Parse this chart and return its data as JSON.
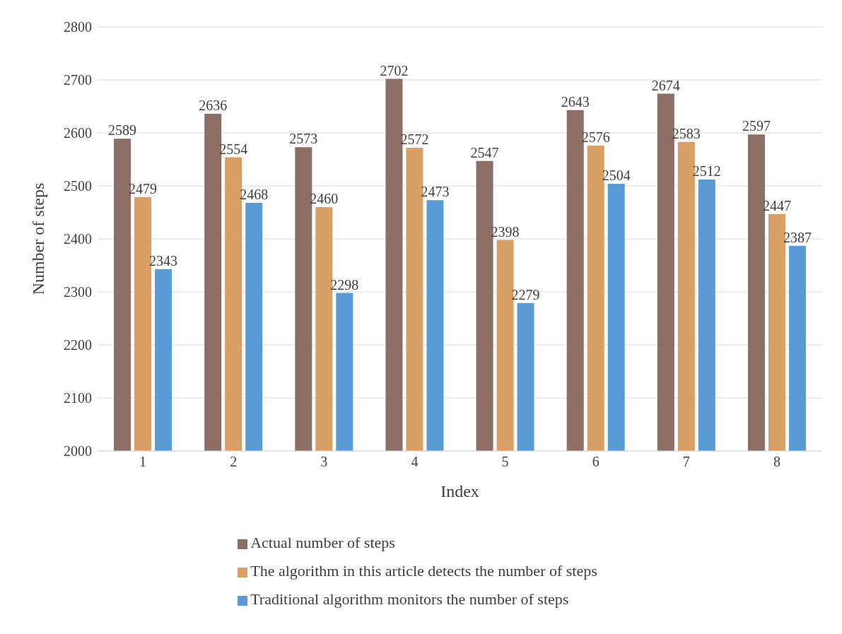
{
  "chart_data": {
    "type": "bar",
    "xlabel": "Index",
    "ylabel": "Number of steps",
    "categories": [
      "1",
      "2",
      "3",
      "4",
      "5",
      "6",
      "7",
      "8"
    ],
    "series": [
      {
        "name": "Actual number of steps",
        "color": "#8c6e64",
        "values": [
          2589,
          2636,
          2573,
          2702,
          2547,
          2643,
          2674,
          2597
        ]
      },
      {
        "name": "The algorithm in this article detects the number of steps",
        "color": "#d9a066",
        "values": [
          2479,
          2554,
          2460,
          2572,
          2398,
          2576,
          2583,
          2447
        ]
      },
      {
        "name": "Traditional algorithm monitors the number of steps",
        "color": "#5b9bd5",
        "values": [
          2343,
          2468,
          2298,
          2473,
          2279,
          2504,
          2512,
          2387
        ]
      }
    ],
    "ylim": [
      2000,
      2800
    ],
    "yticks": [
      2000,
      2100,
      2200,
      2300,
      2400,
      2500,
      2600,
      2700,
      2800
    ],
    "grid": "y",
    "legend": "bottom",
    "data_labels": true
  }
}
